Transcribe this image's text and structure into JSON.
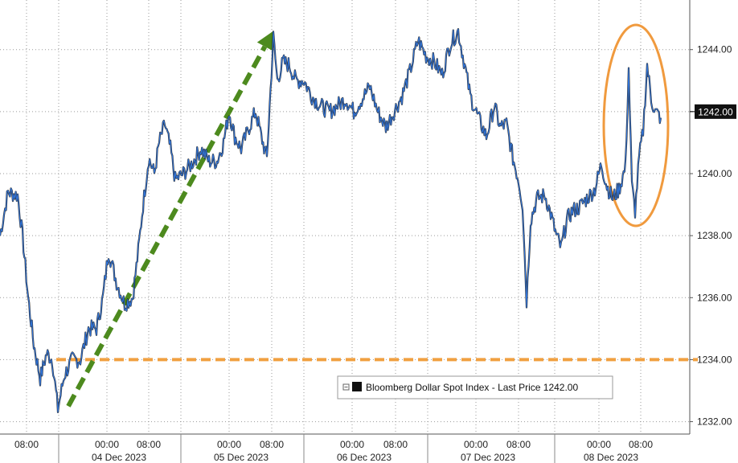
{
  "chart_data": {
    "type": "line",
    "title": "",
    "xlabel": "",
    "ylabel": "",
    "ylim": [
      1231.6,
      1245.6
    ],
    "y_ticks": [
      1232,
      1234,
      1236,
      1238,
      1240,
      1242,
      1244
    ],
    "y_tick_labels": [
      "1232.00",
      "1234.00",
      "1236.00",
      "1238.00",
      "1240.00",
      "1242.00",
      "1244.00"
    ],
    "x_tick_labels": [
      "08:00",
      "00:00",
      "08:00",
      "00:00",
      "08:00",
      "00:00",
      "08:00",
      "00:00",
      "08:00",
      "00:00",
      "08:00"
    ],
    "date_labels": [
      "04 Dec 2023",
      "05 Dec 2023",
      "06 Dec 2023",
      "07 Dec 2023",
      "08 Dec 2023"
    ],
    "grid": true,
    "series": [
      {
        "name": "Bloomberg Dollar Spot Index - Last Price",
        "color": "#2f72d6",
        "last_price": "1242.00",
        "points": [
          [
            0,
            1238.0
          ],
          [
            10,
            1239.4
          ],
          [
            22,
            1239.3
          ],
          [
            28,
            1238.0
          ],
          [
            35,
            1236.0
          ],
          [
            42,
            1234.5
          ],
          [
            50,
            1233.4
          ],
          [
            58,
            1234.2
          ],
          [
            65,
            1234.0
          ],
          [
            72,
            1232.4
          ],
          [
            80,
            1233.5
          ],
          [
            90,
            1234.0
          ],
          [
            100,
            1234.0
          ],
          [
            110,
            1235.0
          ],
          [
            120,
            1235.0
          ],
          [
            128,
            1236.0
          ],
          [
            135,
            1237.5
          ],
          [
            145,
            1236.5
          ],
          [
            155,
            1235.8
          ],
          [
            165,
            1236.0
          ],
          [
            172,
            1237.5
          ],
          [
            178,
            1239.0
          ],
          [
            185,
            1240.5
          ],
          [
            192,
            1240.0
          ],
          [
            198,
            1241.0
          ],
          [
            205,
            1241.6
          ],
          [
            212,
            1240.8
          ],
          [
            218,
            1239.8
          ],
          [
            228,
            1240.0
          ],
          [
            238,
            1240.3
          ],
          [
            250,
            1240.8
          ],
          [
            260,
            1240.4
          ],
          [
            270,
            1240.4
          ],
          [
            278,
            1241.0
          ],
          [
            285,
            1242.0
          ],
          [
            292,
            1241.2
          ],
          [
            300,
            1240.8
          ],
          [
            310,
            1241.5
          ],
          [
            318,
            1242.0
          ],
          [
            325,
            1241.2
          ],
          [
            332,
            1240.5
          ],
          [
            340,
            1244.4
          ],
          [
            345,
            1243.0
          ],
          [
            352,
            1243.6
          ],
          [
            360,
            1243.5
          ],
          [
            368,
            1243.0
          ],
          [
            378,
            1243.0
          ],
          [
            388,
            1242.5
          ],
          [
            398,
            1242.2
          ],
          [
            410,
            1242.0
          ],
          [
            420,
            1242.2
          ],
          [
            430,
            1242.4
          ],
          [
            440,
            1242.0
          ],
          [
            450,
            1242.4
          ],
          [
            460,
            1242.8
          ],
          [
            470,
            1242.0
          ],
          [
            480,
            1241.5
          ],
          [
            490,
            1242.0
          ],
          [
            500,
            1242.5
          ],
          [
            510,
            1243.3
          ],
          [
            520,
            1244.3
          ],
          [
            530,
            1243.8
          ],
          [
            540,
            1243.6
          ],
          [
            550,
            1243.2
          ],
          [
            560,
            1244.2
          ],
          [
            570,
            1244.6
          ],
          [
            578,
            1243.5
          ],
          [
            585,
            1242.5
          ],
          [
            595,
            1241.8
          ],
          [
            605,
            1241.2
          ],
          [
            615,
            1242.2
          ],
          [
            622,
            1241.5
          ],
          [
            630,
            1241.6
          ],
          [
            638,
            1240.5
          ],
          [
            645,
            1239.8
          ],
          [
            650,
            1239.0
          ],
          [
            655,
            1235.9
          ],
          [
            660,
            1238.5
          ],
          [
            668,
            1239.2
          ],
          [
            678,
            1239.3
          ],
          [
            685,
            1238.7
          ],
          [
            692,
            1238.0
          ],
          [
            698,
            1237.6
          ],
          [
            705,
            1238.5
          ],
          [
            712,
            1238.8
          ],
          [
            720,
            1238.9
          ],
          [
            730,
            1239.2
          ],
          [
            740,
            1239.5
          ],
          [
            748,
            1240.3
          ],
          [
            755,
            1239.6
          ],
          [
            762,
            1239.2
          ],
          [
            770,
            1239.5
          ],
          [
            778,
            1240.2
          ],
          [
            782,
            1243.4
          ],
          [
            786,
            1239.6
          ],
          [
            790,
            1238.8
          ],
          [
            795,
            1240.5
          ],
          [
            800,
            1241.4
          ],
          [
            805,
            1243.5
          ],
          [
            810,
            1242.4
          ],
          [
            815,
            1242.0
          ],
          [
            822,
            1241.8
          ]
        ]
      }
    ],
    "annotations": [
      {
        "type": "dashed-arrow",
        "color": "#4d8a1e",
        "from": [
          85,
          1232.5
        ],
        "to": [
          340,
          1244.6
        ]
      },
      {
        "type": "horizontal-dashed-line",
        "color": "#f0a040",
        "y": 1234.0
      },
      {
        "type": "ellipse",
        "color": "#f09a3e"
      }
    ]
  },
  "legend": {
    "label": "Bloomberg Dollar Spot Index - Last Price",
    "value": "1242.00",
    "placement": "bottom-right"
  }
}
